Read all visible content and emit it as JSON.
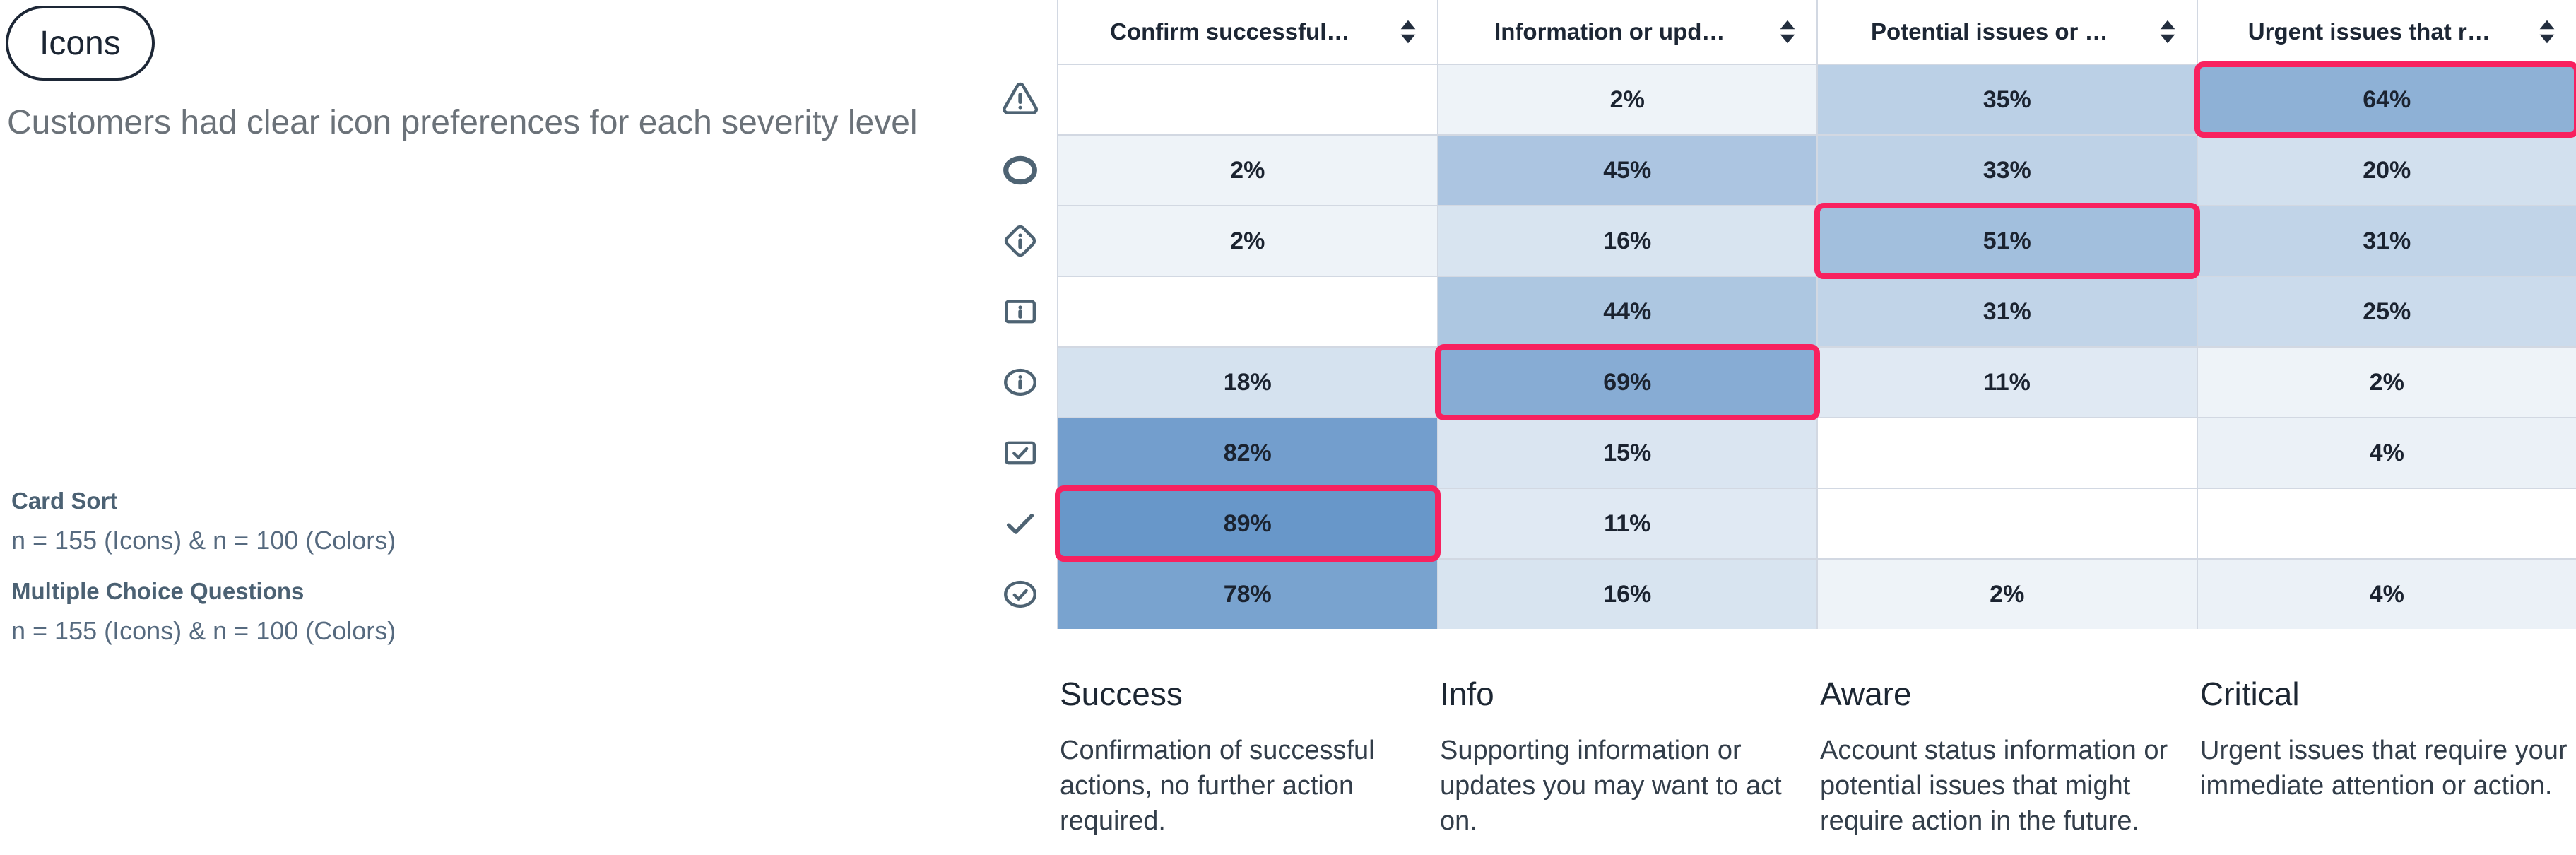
{
  "page": {
    "tag_label": "Icons",
    "subtitle": "Customers had clear icon preferences for each severity level"
  },
  "legend": {
    "items": [
      {
        "title": "Card Sort",
        "sample": "n = 155 (Icons) & n = 100 (Colors)"
      },
      {
        "title": "Multiple Choice Questions",
        "sample": "n = 155 (Icons) & n = 100 (Colors)"
      }
    ]
  },
  "colors": {
    "icon": "#4e6373",
    "accent_highlight": "#f8215f",
    "grid_line": "#d2d8e2",
    "header_text": "#1c2634"
  },
  "chart_data": {
    "type": "heatmap",
    "title": "Customers had clear icon preferences for each severity level",
    "columns": [
      {
        "label": "Confirm successful…",
        "sortable": true
      },
      {
        "label": "Information or upd…",
        "sortable": true
      },
      {
        "label": "Potential issues or …",
        "sortable": true
      },
      {
        "label": "Urgent issues that r…",
        "sortable": true
      }
    ],
    "rows": [
      {
        "icon": "warning-triangle-icon",
        "values": [
          null,
          2,
          35,
          64
        ],
        "highlight": 3
      },
      {
        "icon": "circle-icon",
        "values": [
          2,
          45,
          33,
          20
        ]
      },
      {
        "icon": "diamond-info-icon",
        "values": [
          2,
          16,
          51,
          31
        ],
        "highlight": 2
      },
      {
        "icon": "square-info-icon",
        "values": [
          null,
          44,
          31,
          25
        ]
      },
      {
        "icon": "circle-info-icon",
        "values": [
          18,
          69,
          11,
          2
        ],
        "highlight": 1
      },
      {
        "icon": "square-check-icon",
        "values": [
          82,
          15,
          null,
          4
        ]
      },
      {
        "icon": "check-icon",
        "values": [
          89,
          11,
          null,
          null
        ],
        "highlight": 0
      },
      {
        "icon": "circle-check-icon",
        "values": [
          78,
          16,
          2,
          4
        ]
      }
    ],
    "value_suffix": "%",
    "heatmap": {
      "empty": "#ffffff",
      "low": "#f1f5f9",
      "high": "#6897c9",
      "domain_max": 89
    },
    "highlight_color": "#f8215f",
    "legend_position": "left",
    "grid": true
  },
  "categories": [
    {
      "title": "Success",
      "description": "Confirmation of successful actions, no further action required."
    },
    {
      "title": "Info",
      "description": "Supporting information or updates you may want to act on."
    },
    {
      "title": "Aware",
      "description": "Account status information or potential issues that might require action in the future."
    },
    {
      "title": "Critical",
      "description": "Urgent issues that require your immediate attention or action."
    }
  ]
}
